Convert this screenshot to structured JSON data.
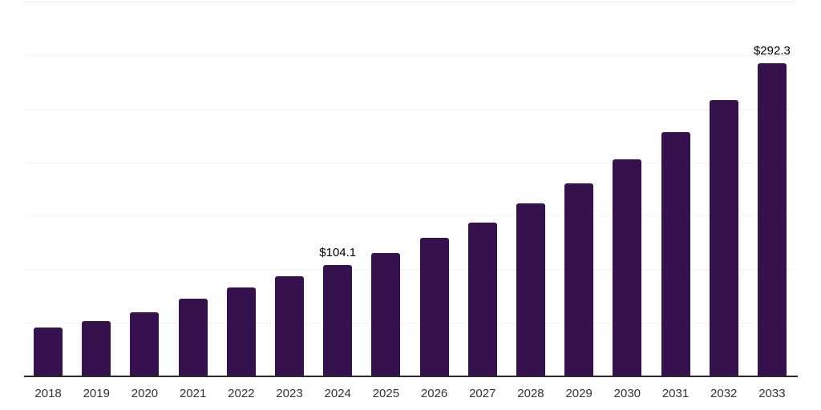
{
  "chart_data": {
    "type": "bar",
    "title": "",
    "xlabel": "",
    "ylabel": "",
    "categories": [
      "2018",
      "2019",
      "2020",
      "2021",
      "2022",
      "2023",
      "2024",
      "2025",
      "2026",
      "2027",
      "2028",
      "2029",
      "2030",
      "2031",
      "2032",
      "2033"
    ],
    "values": [
      46.0,
      51.5,
      60.2,
      72.8,
      83.4,
      93.5,
      104.1,
      115.4,
      129.2,
      144.0,
      161.5,
      180.2,
      202.6,
      227.8,
      258.2,
      292.3
    ],
    "value_prefix": "$",
    "labeled_points": [
      {
        "category": "2024",
        "label": "$104.1"
      },
      {
        "category": "2033",
        "label": "$292.3"
      }
    ],
    "ylim": [
      0,
      350
    ],
    "gridline_step": 50,
    "grid": "horizontal",
    "legend": "none",
    "y_axis_tick_labels_visible": false,
    "colors": {
      "bar": "#35114d",
      "axis_line": "#2b2b2b",
      "gridline": "#f2f2f2",
      "top_gridline": "#e9e9e9",
      "x_tick_label": "#333333",
      "value_label": "#000000",
      "background": "#ffffff"
    }
  }
}
